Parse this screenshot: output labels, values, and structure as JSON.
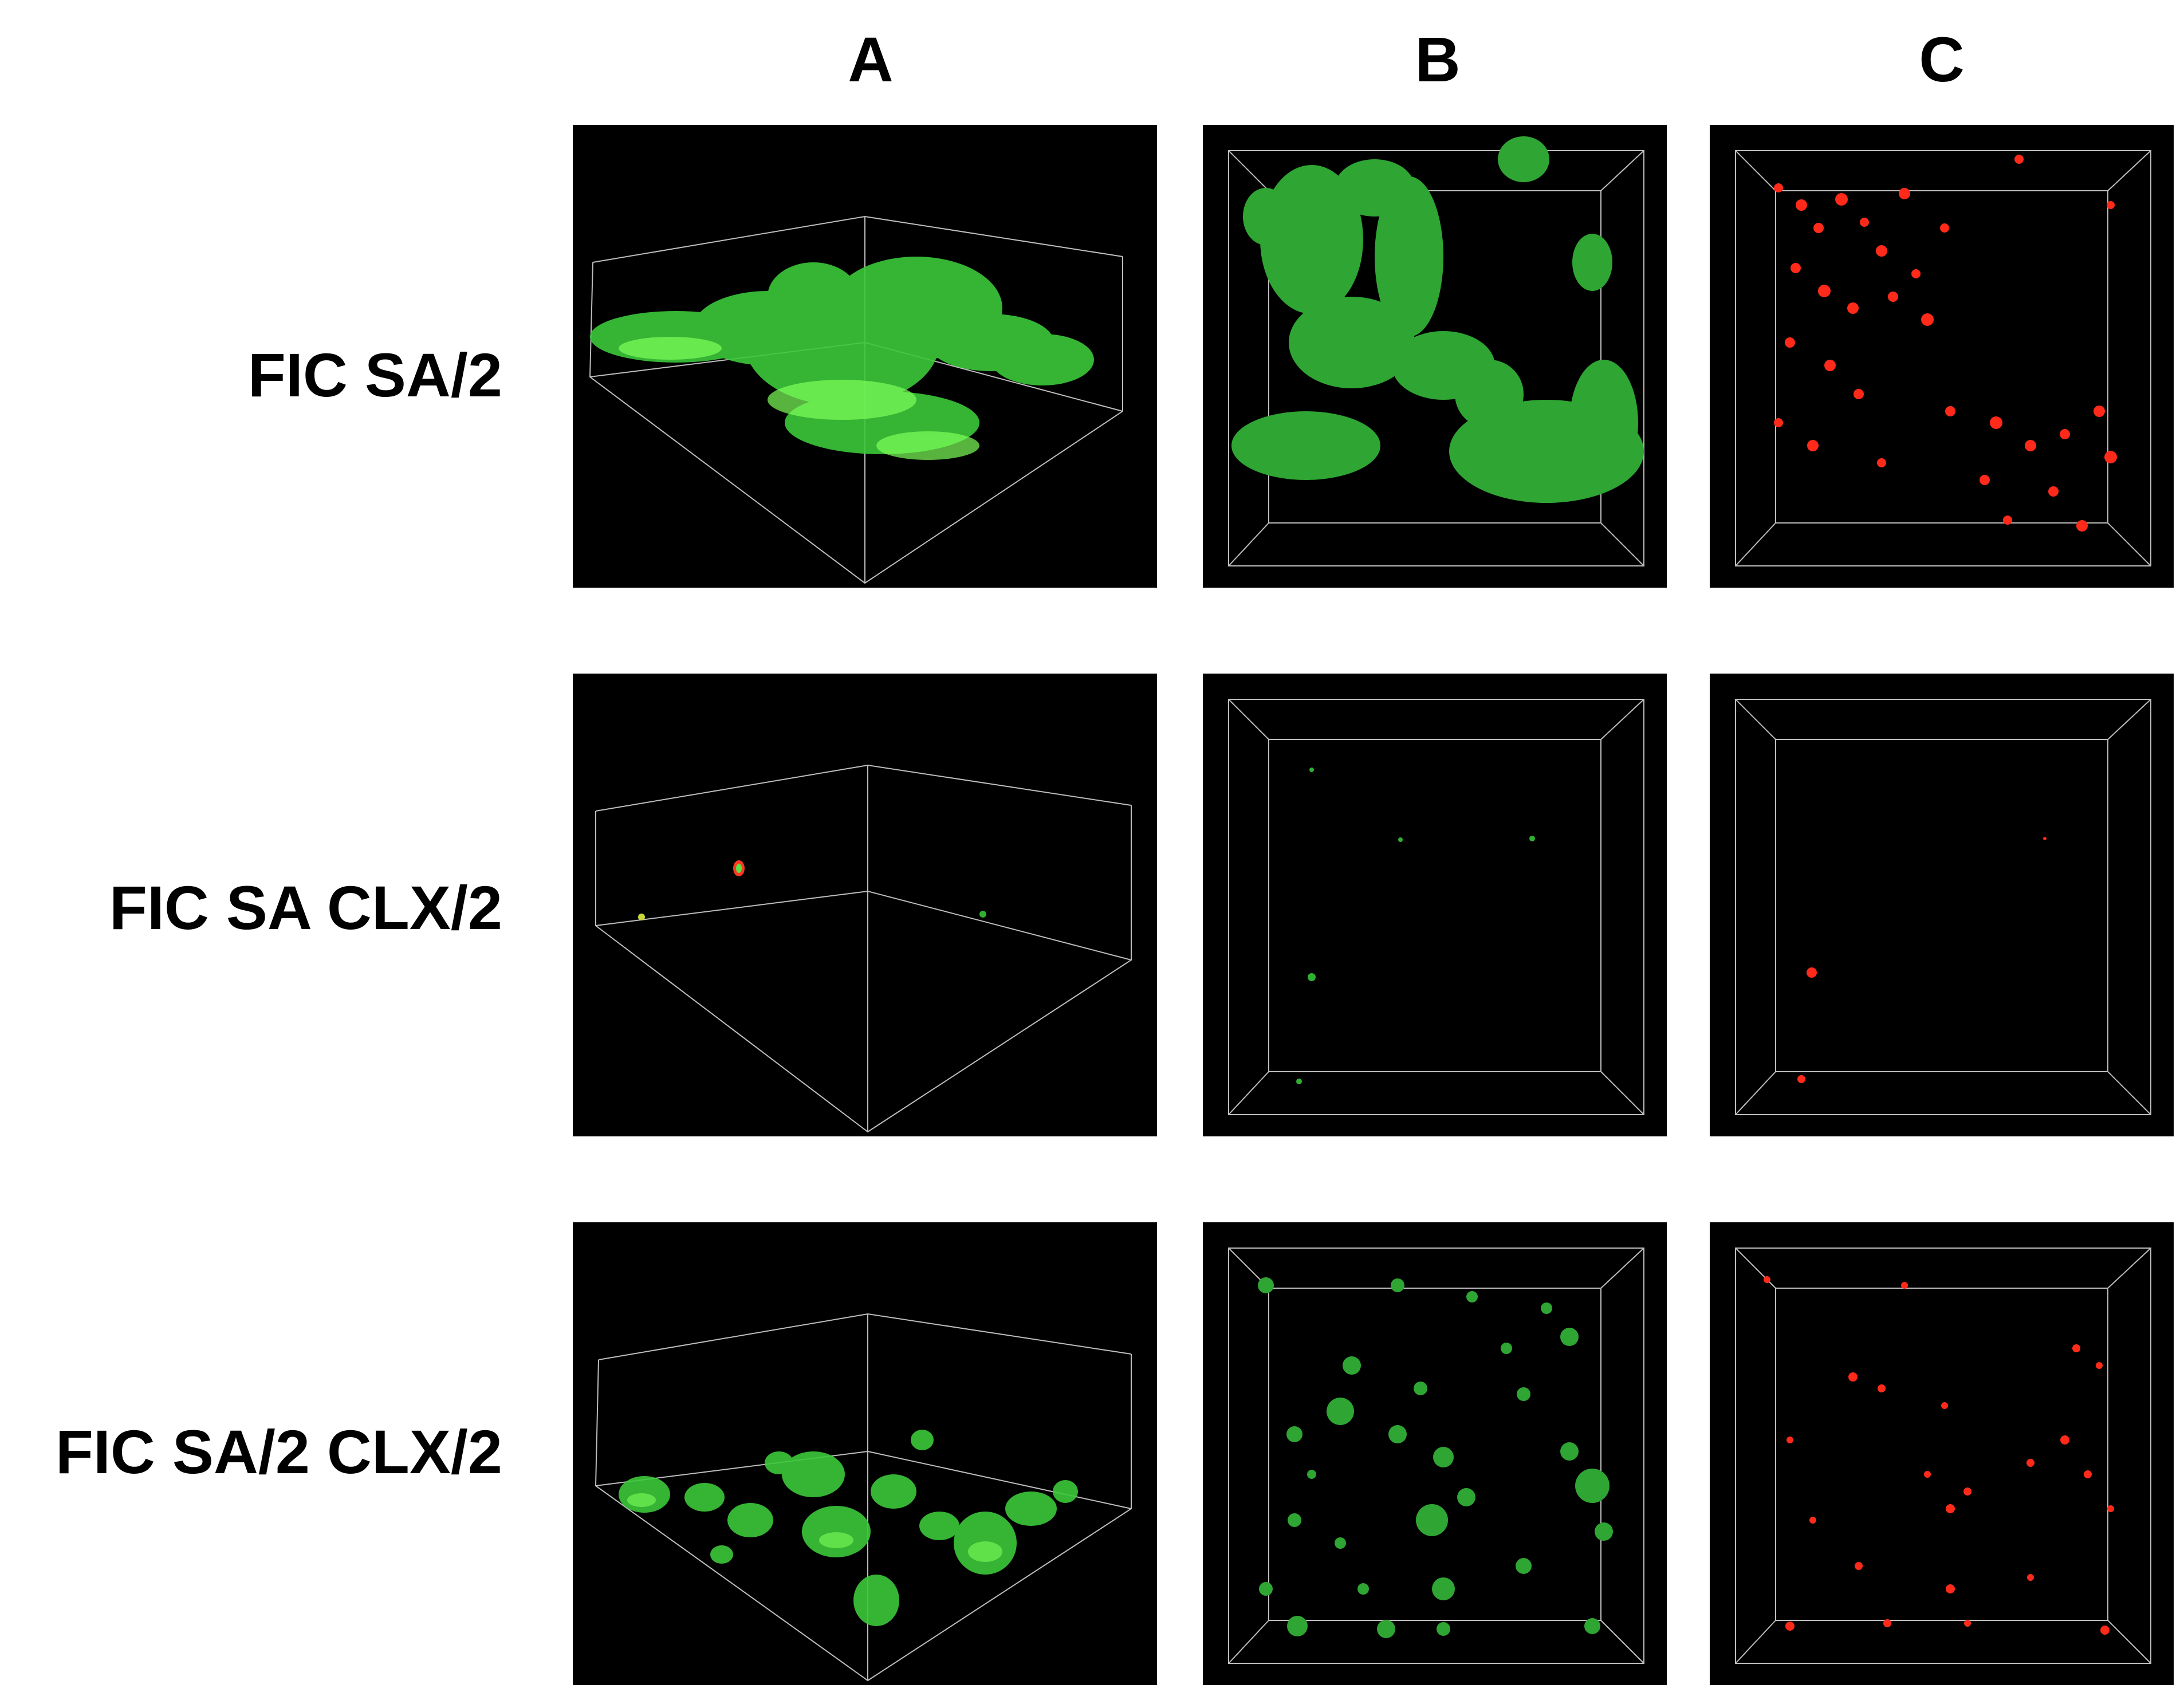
{
  "columns": [
    "A",
    "B",
    "C"
  ],
  "rows": [
    {
      "label": "FIC SA/2",
      "density": "high"
    },
    {
      "label": "FIC SA CLX/2",
      "density": "sparse"
    },
    {
      "label": "FIC SA/2 CLX/2",
      "density": "medium"
    }
  ],
  "colors": {
    "background": "#ffffff",
    "panel": "#000000",
    "live_stain": "#3dbb3a",
    "dead_stain": "#ff2a1a",
    "box_lines": "#bdbdbd"
  }
}
